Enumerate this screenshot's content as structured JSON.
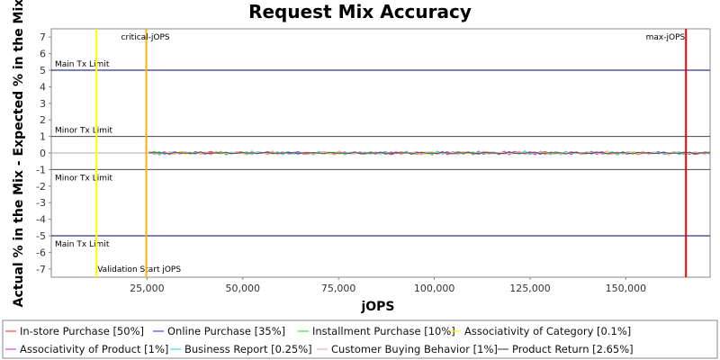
{
  "chart_data": {
    "type": "line",
    "title": "Request Mix Accuracy",
    "xlabel": "jOPS",
    "ylabel": "Actual % in the Mix - Expected % in the Mix",
    "xlim": [
      0,
      172000
    ],
    "ylim": [
      -7.5,
      7.5
    ],
    "x_ticks": [
      25000,
      50000,
      75000,
      100000,
      125000,
      150000
    ],
    "x_tick_labels": [
      "25,000",
      "50,000",
      "75,000",
      "100,000",
      "125,000",
      "150,000"
    ],
    "y_ticks": [
      7,
      6,
      5,
      4,
      3,
      2,
      1,
      0,
      -1,
      -2,
      -3,
      -4,
      -5,
      -6,
      -7
    ],
    "y_tick_labels": [
      "7",
      "6",
      "5",
      "4",
      "3",
      "2",
      "1",
      "0",
      "-1",
      "-2",
      "-3",
      "-4",
      "-5",
      "-6",
      "-7"
    ],
    "grid": false,
    "legend_position": "bottom",
    "horizontal_limits": [
      {
        "value": 5,
        "label": "Main Tx Limit",
        "color": "#000066"
      },
      {
        "value": 1,
        "label": "Minor Tx Limit",
        "color": "#444444"
      },
      {
        "value": -1,
        "label": "Minor Tx Limit",
        "color": "#444444"
      },
      {
        "value": -5,
        "label": "Main Tx Limit",
        "color": "#000066"
      }
    ],
    "vertical_markers": [
      {
        "x": 11800,
        "label": "Validation Start jOPS",
        "color": "#ffff00"
      },
      {
        "x": 24800,
        "label": "critical-jOPS",
        "color": "#ffb000"
      },
      {
        "x": 165700,
        "label": "max-jOPS",
        "color": "#ff0000"
      }
    ],
    "x_start": 25500,
    "x_end": 172000,
    "n_points": 110,
    "value_range": [
      -0.3,
      0.3
    ],
    "series": [
      {
        "name": "In-store Purchase [50%]",
        "color": "#ff4444",
        "amplitude": 0.1
      },
      {
        "name": "Online Purchase [35%]",
        "color": "#4444ff",
        "amplitude": 0.09
      },
      {
        "name": "Installment Purchase [10%]",
        "color": "#44dd44",
        "amplitude": 0.13
      },
      {
        "name": "Associativity of Category [0.1%]",
        "color": "#ffff00",
        "amplitude": 0.1
      },
      {
        "name": "Associativity of Product [1%]",
        "color": "#dd44dd",
        "amplitude": 0.12
      },
      {
        "name": "Business Report [0.25%]",
        "color": "#44dddd",
        "amplitude": 0.11
      },
      {
        "name": "Customer Buying Behavior [1%]",
        "color": "#ffaaaa",
        "amplitude": 0.13
      },
      {
        "name": "Product Return [2.65%]",
        "color": "#555555",
        "amplitude": 0.06
      }
    ]
  }
}
